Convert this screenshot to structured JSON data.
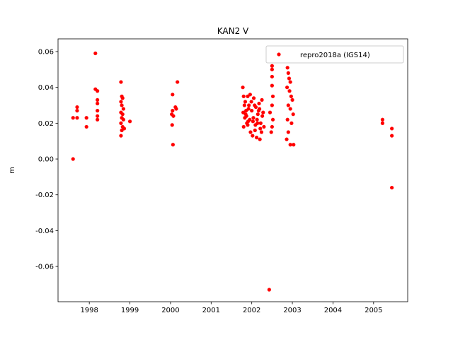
{
  "chart_data": {
    "type": "scatter",
    "title": "KAN2 V",
    "ylabel": "m",
    "x": [
      1997.6,
      1997.6,
      1997.7,
      1997.7,
      1997.7,
      1997.93,
      1997.93,
      1998.15,
      1998.15,
      1998.2,
      1998.2,
      1998.2,
      1998.2,
      1998.2,
      1998.2,
      1998.78,
      1998.8,
      1998.82,
      1998.78,
      1998.8,
      1998.84,
      1998.78,
      1998.82,
      1998.8,
      1998.84,
      1998.78,
      1998.82,
      1998.86,
      1998.8,
      1998.78,
      1999.0,
      2000.05,
      2000.05,
      2000.03,
      2000.07,
      2000.04,
      2000.06,
      2000.12,
      2000.14,
      2000.17,
      2001.78,
      2001.8,
      2001.82,
      2001.85,
      2001.88,
      2001.9,
      2001.92,
      2001.95,
      2001.8,
      2001.84,
      2001.87,
      2001.9,
      2001.93,
      2001.97,
      2002.0,
      2002.03,
      2002.05,
      2002.08,
      2002.1,
      2002.12,
      2002.15,
      2002.18,
      2002.2,
      2002.22,
      2002.25,
      2002.28,
      2002.3,
      2001.83,
      2001.96,
      2002.02,
      2002.07,
      2002.13,
      2002.17,
      2002.21,
      2002.26,
      2001.79,
      2001.91,
      2001.99,
      2002.09,
      2002.19,
      2002.24,
      2001.86,
      2002.04,
      2002.14,
      2002.45,
      2002.43,
      2002.5,
      2002.5,
      2002.5,
      2002.5,
      2002.52,
      2002.5,
      2002.52,
      2002.5,
      2002.48,
      2002.88,
      2002.9,
      2002.92,
      2002.95,
      2002.87,
      2002.93,
      2002.97,
      2003.0,
      2002.9,
      2002.95,
      2003.02,
      2002.88,
      2002.98,
      2002.9,
      2002.86,
      2002.95,
      2003.03,
      2005.22,
      2005.22,
      2005.45,
      2005.45,
      2005.45
    ],
    "series": [
      {
        "name": "repro2018a (IGS14)",
        "color": "#ff0000",
        "values": [
          0.023,
          0.0,
          0.029,
          0.027,
          0.023,
          0.018,
          0.023,
          0.059,
          0.039,
          0.038,
          0.033,
          0.031,
          0.027,
          0.024,
          0.022,
          0.043,
          0.035,
          0.034,
          0.032,
          0.03,
          0.028,
          0.026,
          0.025,
          0.023,
          0.022,
          0.02,
          0.018,
          0.017,
          0.016,
          0.013,
          0.021,
          0.036,
          0.027,
          0.025,
          0.024,
          0.019,
          0.008,
          0.029,
          0.028,
          0.043,
          0.04,
          0.035,
          0.03,
          0.025,
          0.02,
          0.035,
          0.028,
          0.022,
          0.018,
          0.032,
          0.024,
          0.019,
          0.03,
          0.015,
          0.027,
          0.021,
          0.034,
          0.016,
          0.029,
          0.012,
          0.025,
          0.031,
          0.011,
          0.02,
          0.033,
          0.026,
          0.018,
          0.023,
          0.036,
          0.013,
          0.03,
          0.022,
          0.027,
          0.017,
          0.024,
          0.026,
          0.021,
          0.032,
          0.019,
          0.028,
          0.015,
          0.027,
          0.023,
          0.02,
          0.026,
          -0.073,
          0.052,
          0.05,
          0.046,
          0.041,
          0.035,
          0.03,
          0.022,
          0.018,
          0.015,
          0.051,
          0.048,
          0.045,
          0.043,
          0.04,
          0.038,
          0.035,
          0.033,
          0.03,
          0.028,
          0.025,
          0.022,
          0.02,
          0.015,
          0.011,
          0.008,
          0.008,
          0.022,
          0.02,
          0.017,
          0.013,
          -0.016
        ]
      }
    ],
    "xlim": [
      1997.23,
      2005.84
    ],
    "xticks": [
      1998,
      1999,
      2000,
      2001,
      2002,
      2003,
      2004,
      2005
    ],
    "ylim": [
      -0.0797,
      0.0671
    ],
    "yticks": [
      -0.06,
      -0.04,
      -0.02,
      {
        "value": 0,
        "label": "0.00"
      },
      0.02,
      0.04,
      0.06
    ],
    "legend": "upper right"
  }
}
